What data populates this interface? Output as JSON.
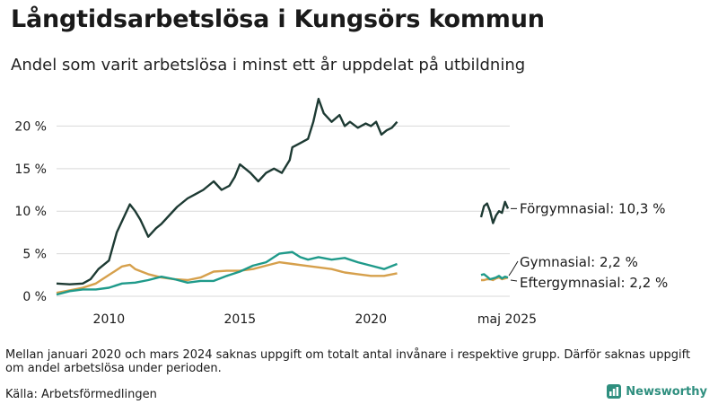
{
  "title": "Långtidsarbetslösa i Kungsörs kommun",
  "subtitle": "Andel som varit arbetslösa i minst ett år uppdelat på utbildning",
  "note": "Mellan januari 2020 och mars 2024 saknas uppgift om totalt antal invånare i respektive grupp. Därför saknas uppgift om andel arbetslösa under perioden.",
  "source": "Källa: Arbetsförmedlingen",
  "brand": {
    "name": "Newsworthy"
  },
  "colors": {
    "forgymnasial": "#1d3a33",
    "gymnasial": "#1f9a8a",
    "eftergymnasial": "#d6a04c",
    "grid": "#d9d9d9"
  },
  "chart_data": {
    "type": "line",
    "ylim": [
      0,
      23
    ],
    "yticks": [
      0,
      5,
      10,
      15,
      20
    ],
    "ytick_labels": [
      "0 %",
      "5 %",
      "10 %",
      "15 %",
      "20 %"
    ],
    "xticks": [
      2010,
      2015,
      2020
    ],
    "xtick_labels": [
      "2010",
      "2015",
      "2020"
    ],
    "last_period_label": "maj 2025",
    "grid": true,
    "series": [
      {
        "name": "Förgymnasial",
        "end_label": "Förgymnasial: 10,3 %",
        "color": "#1d3a33",
        "x": [
          2008.0,
          2008.5,
          2009.0,
          2009.3,
          2009.6,
          2010.0,
          2010.3,
          2010.6,
          2010.8,
          2011.0,
          2011.2,
          2011.5,
          2011.8,
          2012.0,
          2012.3,
          2012.6,
          2013.0,
          2013.3,
          2013.6,
          2014.0,
          2014.3,
          2014.6,
          2014.8,
          2015.0,
          2015.2,
          2015.4,
          2015.7,
          2016.0,
          2016.3,
          2016.6,
          2016.9,
          2017.0,
          2017.3,
          2017.6,
          2017.8,
          2018.0,
          2018.2,
          2018.5,
          2018.8,
          2019.0,
          2019.2,
          2019.5,
          2019.8,
          2020.0,
          2020.2,
          2020.4,
          2020.6,
          2020.8,
          2021.0
        ],
        "values": [
          1.5,
          1.4,
          1.5,
          2.0,
          3.2,
          4.2,
          7.5,
          9.5,
          10.8,
          10.0,
          9.0,
          7.0,
          8.0,
          8.5,
          9.5,
          10.5,
          11.5,
          12.0,
          12.5,
          13.5,
          12.5,
          13.0,
          14.0,
          15.5,
          15.0,
          14.5,
          13.5,
          14.5,
          15.0,
          14.5,
          16.0,
          17.5,
          18.0,
          18.5,
          20.5,
          23.2,
          21.5,
          20.5,
          21.3,
          20.0,
          20.5,
          19.8,
          20.3,
          20.0,
          20.5,
          19.0,
          19.5,
          19.8,
          20.5
        ]
      },
      {
        "name": "Gymnasial",
        "end_label": "Gymnasial:  2,2 %",
        "color": "#1f9a8a",
        "x": [
          2008.0,
          2008.5,
          2009.0,
          2009.5,
          2010.0,
          2010.5,
          2011.0,
          2011.5,
          2012.0,
          2012.5,
          2013.0,
          2013.5,
          2014.0,
          2014.5,
          2015.0,
          2015.5,
          2016.0,
          2016.5,
          2017.0,
          2017.3,
          2017.6,
          2018.0,
          2018.5,
          2019.0,
          2019.5,
          2020.0,
          2020.5,
          2021.0
        ],
        "values": [
          0.2,
          0.6,
          0.8,
          0.8,
          1.0,
          1.5,
          1.6,
          1.9,
          2.3,
          2.0,
          1.6,
          1.8,
          1.8,
          2.4,
          2.9,
          3.6,
          4.0,
          5.0,
          5.2,
          4.6,
          4.3,
          4.6,
          4.3,
          4.5,
          4.0,
          3.6,
          3.2,
          3.8
        ]
      },
      {
        "name": "Eftergymnasial",
        "end_label": "Eftergymnasial:  2,2 %",
        "color": "#d6a04c",
        "x": [
          2008.0,
          2008.5,
          2009.0,
          2009.5,
          2010.0,
          2010.5,
          2010.8,
          2011.0,
          2011.5,
          2012.0,
          2012.5,
          2013.0,
          2013.5,
          2014.0,
          2014.5,
          2015.0,
          2015.5,
          2016.0,
          2016.5,
          2017.0,
          2017.5,
          2018.0,
          2018.5,
          2019.0,
          2019.5,
          2020.0,
          2020.5,
          2021.0
        ],
        "values": [
          0.4,
          0.7,
          1.0,
          1.5,
          2.5,
          3.5,
          3.7,
          3.2,
          2.6,
          2.2,
          2.0,
          1.9,
          2.2,
          2.9,
          3.0,
          3.0,
          3.2,
          3.6,
          4.0,
          3.8,
          3.6,
          3.4,
          3.2,
          2.8,
          2.6,
          2.4,
          2.4,
          2.7
        ]
      }
    ],
    "recent_series": [
      {
        "name": "Förgymnasial",
        "values": [
          9.3,
          10.6,
          10.9,
          10.0,
          8.6,
          9.5,
          10.0,
          9.8,
          11.1,
          10.3
        ]
      },
      {
        "name": "Gymnasial",
        "values": [
          2.5,
          2.6,
          2.3,
          2.0,
          2.1,
          2.2,
          2.4,
          2.1,
          2.3,
          2.2
        ]
      },
      {
        "name": "Eftergymnasial",
        "values": [
          1.9,
          1.9,
          2.0,
          2.0,
          1.9,
          2.1,
          2.2,
          2.0,
          2.1,
          2.2
        ]
      }
    ]
  }
}
